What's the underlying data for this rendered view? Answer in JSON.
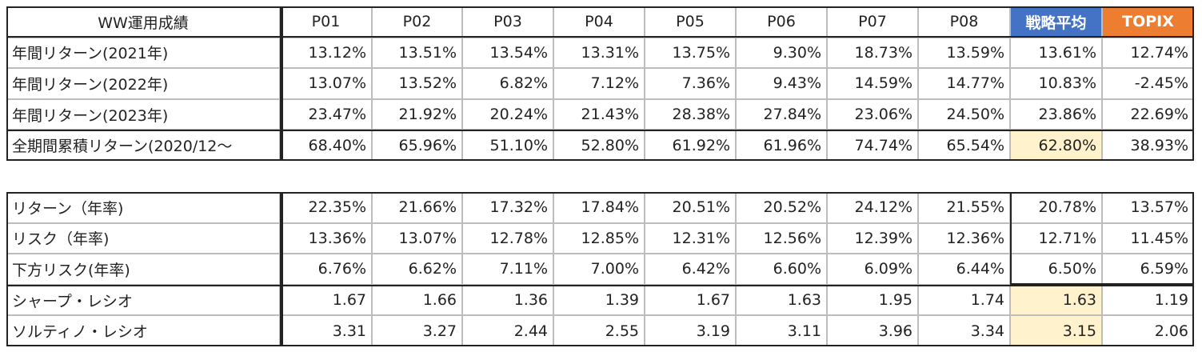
{
  "tables": [
    {
      "header": [
        "WW運用成績",
        "P01",
        "P02",
        "P03",
        "P04",
        "P05",
        "P06",
        "P07",
        "P08",
        "戦略平均",
        "TOPIX"
      ],
      "rows": [
        {
          "label": "年間リターン(2021年)",
          "cells": [
            "13.12%",
            "13.51%",
            "13.54%",
            "13.31%",
            "13.75%",
            "9.30%",
            "18.73%",
            "13.59%",
            "13.61%",
            "12.74%"
          ]
        },
        {
          "label": "年間リターン(2022年)",
          "cells": [
            "13.07%",
            "13.52%",
            "6.82%",
            "7.12%",
            "7.36%",
            "9.43%",
            "14.59%",
            "14.77%",
            "10.83%",
            "-2.45%"
          ]
        },
        {
          "label": "年間リターン(2023年)",
          "cells": [
            "23.47%",
            "21.92%",
            "20.24%",
            "21.43%",
            "28.38%",
            "27.84%",
            "23.06%",
            "24.50%",
            "23.86%",
            "22.69%"
          ]
        },
        {
          "label": "全期間累積リターン(2020/12〜",
          "cells": [
            "68.40%",
            "65.96%",
            "51.10%",
            "52.80%",
            "61.92%",
            "61.96%",
            "74.74%",
            "65.54%",
            "62.80%",
            "38.93%"
          ]
        }
      ]
    },
    {
      "rows": [
        {
          "label": "リターン（年率)",
          "cells": [
            "22.35%",
            "21.66%",
            "17.32%",
            "17.84%",
            "20.51%",
            "20.52%",
            "24.12%",
            "21.55%",
            "20.78%",
            "13.57%"
          ]
        },
        {
          "label": "リスク（年率)",
          "cells": [
            "13.36%",
            "13.07%",
            "12.78%",
            "12.85%",
            "12.31%",
            "12.56%",
            "12.39%",
            "12.36%",
            "12.71%",
            "11.45%"
          ]
        },
        {
          "label": "下方リスク(年率)",
          "cells": [
            "6.76%",
            "6.62%",
            "7.11%",
            "7.00%",
            "6.42%",
            "6.60%",
            "6.09%",
            "6.44%",
            "6.50%",
            "6.59%"
          ]
        },
        {
          "label": "シャープ・レシオ",
          "cells": [
            "1.67",
            "1.66",
            "1.36",
            "1.39",
            "1.67",
            "1.63",
            "1.95",
            "1.74",
            "1.63",
            "1.19"
          ]
        },
        {
          "label": "ソルティノ・レシオ",
          "cells": [
            "3.31",
            "3.27",
            "2.44",
            "2.55",
            "3.19",
            "3.11",
            "3.96",
            "3.34",
            "3.15",
            "2.06"
          ]
        }
      ]
    }
  ]
}
